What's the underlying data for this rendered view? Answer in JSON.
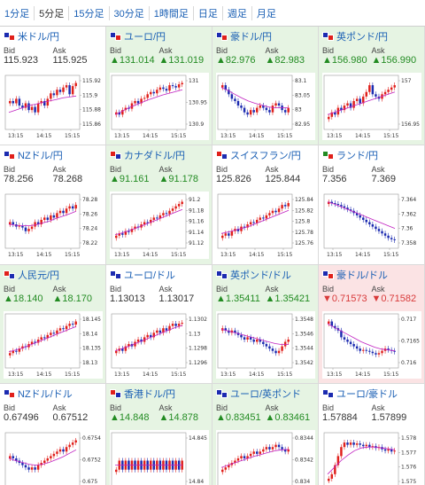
{
  "tabs": [
    {
      "label": "1分足",
      "active": false
    },
    {
      "label": "5分足",
      "active": true
    },
    {
      "label": "15分足",
      "active": false
    },
    {
      "label": "30分足",
      "active": false
    },
    {
      "label": "1時間足",
      "active": false
    },
    {
      "label": "日足",
      "active": false
    },
    {
      "label": "週足",
      "active": false
    },
    {
      "label": "月足",
      "active": false
    }
  ],
  "labels": {
    "bid": "Bid",
    "ask": "Ask"
  },
  "colors": {
    "up": "#228b22",
    "down": "#d83a3a",
    "up_bg": "#e6f4e3",
    "down_bg": "#fbe3e4",
    "bull_candle": "#e0201b",
    "bear_candle": "#1c2bb0",
    "ma_line": "#c020c0"
  },
  "cells": [
    {
      "pair": "米ドル/円",
      "flag": [
        "#1c2bb0",
        "#e0201b"
      ],
      "state": "neutral",
      "bid": "115.923",
      "ask": "115.925",
      "chart_data": {
        "type": "candlestick",
        "yticks": [
          "115.92",
          "115.9",
          "115.88",
          "115.86"
        ],
        "xticks": [
          "13:15",
          "14:15",
          "15:15"
        ],
        "trend": [
          0.55,
          0.5,
          0.6,
          0.45,
          0.4,
          0.5,
          0.35,
          0.42,
          0.3,
          0.5,
          0.55,
          0.45,
          0.6,
          0.72,
          0.68,
          0.8,
          0.75,
          0.85,
          0.9,
          0.7,
          0.88,
          0.95
        ],
        "ma": [
          0.3,
          0.35,
          0.4,
          0.45,
          0.48,
          0.52,
          0.55,
          0.58,
          0.62,
          0.64,
          0.66
        ]
      }
    },
    {
      "pair": "ユーロ/円",
      "flag": [
        "#1c2bb0",
        "#e0201b"
      ],
      "state": "up",
      "bid": "▲131.014",
      "ask": "▲131.019",
      "chart_data": {
        "type": "candlestick",
        "yticks": [
          "131",
          "130.95",
          "130.9"
        ],
        "xticks": [
          "13:15",
          "14:15",
          "15:15"
        ],
        "trend": [
          0.3,
          0.25,
          0.35,
          0.4,
          0.38,
          0.5,
          0.55,
          0.5,
          0.6,
          0.62,
          0.7,
          0.75,
          0.72,
          0.8,
          0.85,
          0.82,
          0.78,
          0.9,
          0.88,
          0.85,
          0.92,
          0.95
        ],
        "ma": [
          0.25,
          0.32,
          0.4,
          0.46,
          0.52,
          0.58,
          0.63,
          0.68,
          0.72,
          0.76,
          0.8
        ]
      }
    },
    {
      "pair": "豪ドル/円",
      "flag": [
        "#1c2bb0",
        "#e0201b"
      ],
      "state": "up",
      "bid": "▲82.976",
      "ask": "▲82.983",
      "chart_data": {
        "type": "candlestick",
        "yticks": [
          "83.1",
          "83.05",
          "83",
          "82.95"
        ],
        "xticks": [
          "13:15",
          "14:15",
          "15:15"
        ],
        "trend": [
          0.9,
          0.8,
          0.7,
          0.6,
          0.55,
          0.45,
          0.4,
          0.3,
          0.25,
          0.35,
          0.3,
          0.4,
          0.45,
          0.4,
          0.35,
          0.3,
          0.45,
          0.5,
          0.45,
          0.35,
          0.3,
          0.4
        ],
        "ma": [
          0.85,
          0.78,
          0.7,
          0.62,
          0.55,
          0.5,
          0.46,
          0.42,
          0.4,
          0.4,
          0.4
        ]
      }
    },
    {
      "pair": "英ポンド/円",
      "flag": [
        "#1c2bb0",
        "#e0201b"
      ],
      "state": "up",
      "bid": "▲156.980",
      "ask": "▲156.990",
      "chart_data": {
        "type": "candlestick",
        "yticks": [
          "157",
          "156.95"
        ],
        "xticks": [
          "13:15",
          "14:15",
          "15:15"
        ],
        "trend": [
          0.2,
          0.3,
          0.25,
          0.4,
          0.35,
          0.45,
          0.5,
          0.4,
          0.55,
          0.6,
          0.5,
          0.65,
          0.75,
          0.9,
          0.7,
          0.65,
          0.6,
          0.7,
          0.75,
          0.8,
          0.85,
          0.9
        ],
        "ma": [
          0.25,
          0.3,
          0.35,
          0.4,
          0.45,
          0.5,
          0.55,
          0.6,
          0.65,
          0.7,
          0.75
        ]
      }
    },
    {
      "pair": "NZドル/円",
      "flag": [
        "#1c2bb0",
        "#e0201b"
      ],
      "state": "neutral",
      "bid": "78.256",
      "ask": "78.268",
      "chart_data": {
        "type": "candlestick",
        "yticks": [
          "78.28",
          "78.26",
          "78.24",
          "78.22"
        ],
        "xticks": [
          "13:15",
          "14:15",
          "15:15"
        ],
        "trend": [
          0.5,
          0.45,
          0.4,
          0.42,
          0.38,
          0.3,
          0.35,
          0.4,
          0.5,
          0.45,
          0.55,
          0.6,
          0.55,
          0.65,
          0.6,
          0.7,
          0.75,
          0.7,
          0.8,
          0.85,
          0.8,
          0.88
        ],
        "ma": [
          0.45,
          0.43,
          0.42,
          0.42,
          0.44,
          0.48,
          0.52,
          0.58,
          0.63,
          0.68,
          0.74
        ]
      }
    },
    {
      "pair": "カナダドル/円",
      "flag": [
        "#e0201b",
        "#1c2bb0"
      ],
      "state": "up",
      "bid": "▲91.161",
      "ask": "▲91.178",
      "chart_data": {
        "type": "candlestick",
        "yticks": [
          "91.2",
          "91.18",
          "91.16",
          "91.14",
          "91.12"
        ],
        "xticks": [
          "13:15",
          "14:15",
          "15:15"
        ],
        "trend": [
          0.2,
          0.25,
          0.22,
          0.3,
          0.28,
          0.35,
          0.4,
          0.38,
          0.45,
          0.5,
          0.48,
          0.55,
          0.6,
          0.58,
          0.65,
          0.7,
          0.68,
          0.75,
          0.8,
          0.85,
          0.9,
          0.95
        ],
        "ma": [
          0.22,
          0.26,
          0.31,
          0.36,
          0.42,
          0.48,
          0.54,
          0.6,
          0.66,
          0.72,
          0.78
        ]
      }
    },
    {
      "pair": "スイスフラン/円",
      "flag": [
        "#e0201b",
        "#1c2bb0"
      ],
      "state": "neutral",
      "bid": "125.826",
      "ask": "125.844",
      "chart_data": {
        "type": "candlestick",
        "yticks": [
          "125.84",
          "125.82",
          "125.8",
          "125.78",
          "125.76"
        ],
        "xticks": [
          "13:15",
          "14:15",
          "15:15"
        ],
        "trend": [
          0.2,
          0.25,
          0.2,
          0.3,
          0.35,
          0.3,
          0.4,
          0.38,
          0.45,
          0.5,
          0.48,
          0.55,
          0.6,
          0.58,
          0.65,
          0.7,
          0.75,
          0.72,
          0.8,
          0.88,
          0.85,
          0.92
        ],
        "ma": [
          0.25,
          0.28,
          0.32,
          0.36,
          0.4,
          0.46,
          0.52,
          0.58,
          0.64,
          0.7,
          0.76
        ]
      }
    },
    {
      "pair": "ランド/円",
      "flag": [
        "#228b22",
        "#e0201b"
      ],
      "state": "neutral",
      "bid": "7.356",
      "ask": "7.369",
      "chart_data": {
        "type": "candlestick",
        "yticks": [
          "7.364",
          "7.362",
          "7.36",
          "7.358"
        ],
        "xticks": [
          "13:15",
          "14:15",
          "15:15"
        ],
        "trend": [
          0.95,
          0.92,
          0.9,
          0.88,
          0.85,
          0.82,
          0.78,
          0.75,
          0.7,
          0.65,
          0.6,
          0.55,
          0.5,
          0.45,
          0.4,
          0.35,
          0.3,
          0.25,
          0.2,
          0.15,
          0.12,
          0.1
        ],
        "ma": [
          0.95,
          0.9,
          0.84,
          0.78,
          0.72,
          0.66,
          0.6,
          0.54,
          0.48,
          0.42,
          0.36
        ]
      }
    },
    {
      "pair": "人民元/円",
      "flag": [
        "#e0201b",
        "#1c2bb0"
      ],
      "state": "up",
      "bid": "▲18.140",
      "ask": "▲18.170",
      "chart_data": {
        "type": "candlestick",
        "yticks": [
          "18.145",
          "18.14",
          "18.135",
          "18.13"
        ],
        "xticks": [
          "13:15",
          "14:15",
          "15:15"
        ],
        "trend": [
          0.25,
          0.3,
          0.28,
          0.35,
          0.4,
          0.38,
          0.45,
          0.5,
          0.48,
          0.55,
          0.6,
          0.58,
          0.65,
          0.7,
          0.68,
          0.75,
          0.8,
          0.78,
          0.85,
          0.9,
          0.88,
          0.95
        ],
        "ma": [
          0.28,
          0.32,
          0.36,
          0.42,
          0.48,
          0.54,
          0.6,
          0.66,
          0.72,
          0.78,
          0.84
        ]
      }
    },
    {
      "pair": "ユーロ/ドル",
      "flag": [
        "#1c2bb0",
        "#1c2bb0"
      ],
      "state": "neutral",
      "bid": "1.13013",
      "ask": "1.13017",
      "chart_data": {
        "type": "candlestick",
        "yticks": [
          "1.1302",
          "1.13",
          "1.1298",
          "1.1296"
        ],
        "xticks": [
          "13:15",
          "14:15",
          "15:15"
        ],
        "trend": [
          0.3,
          0.35,
          0.3,
          0.4,
          0.45,
          0.4,
          0.5,
          0.55,
          0.5,
          0.6,
          0.65,
          0.6,
          0.7,
          0.75,
          0.7,
          0.8,
          0.75,
          0.85,
          0.9,
          0.85,
          0.9,
          0.92
        ],
        "ma": [
          0.3,
          0.35,
          0.4,
          0.46,
          0.52,
          0.58,
          0.64,
          0.7,
          0.76,
          0.82,
          0.86
        ]
      }
    },
    {
      "pair": "英ポンド/ドル",
      "flag": [
        "#1c2bb0",
        "#1c2bb0"
      ],
      "state": "up",
      "bid": "▲1.35411",
      "ask": "▲1.35421",
      "chart_data": {
        "type": "candlestick",
        "yticks": [
          "1.3548",
          "1.3546",
          "1.3544",
          "1.3542"
        ],
        "xticks": [
          "13:15",
          "14:15",
          "15:15"
        ],
        "trend": [
          0.8,
          0.75,
          0.7,
          0.75,
          0.7,
          0.65,
          0.6,
          0.55,
          0.6,
          0.55,
          0.5,
          0.55,
          0.5,
          0.45,
          0.4,
          0.35,
          0.3,
          0.25,
          0.3,
          0.4,
          0.5,
          0.55
        ],
        "ma": [
          0.78,
          0.74,
          0.7,
          0.66,
          0.62,
          0.58,
          0.54,
          0.5,
          0.46,
          0.44,
          0.44
        ]
      }
    },
    {
      "pair": "豪ドル/ドル",
      "flag": [
        "#1c2bb0",
        "#e0201b"
      ],
      "state": "down",
      "bid": "▼0.71573",
      "ask": "▼0.71582",
      "chart_data": {
        "type": "candlestick",
        "yticks": [
          "0.717",
          "0.7165",
          "0.716"
        ],
        "xticks": [
          "13:15",
          "14:15",
          "15:15"
        ],
        "trend": [
          0.95,
          0.85,
          0.8,
          0.75,
          0.6,
          0.55,
          0.5,
          0.45,
          0.4,
          0.35,
          0.3,
          0.32,
          0.3,
          0.28,
          0.25,
          0.22,
          0.25,
          0.3,
          0.35,
          0.32,
          0.3,
          0.28
        ],
        "ma": [
          0.9,
          0.82,
          0.74,
          0.66,
          0.58,
          0.5,
          0.44,
          0.38,
          0.34,
          0.32,
          0.3
        ]
      }
    },
    {
      "pair": "NZドル/ドル",
      "flag": [
        "#1c2bb0",
        "#e0201b"
      ],
      "state": "neutral",
      "bid": "0.67496",
      "ask": "0.67512",
      "chart_data": {
        "type": "candlestick",
        "yticks": [
          "0.6754",
          "0.6752",
          "0.675"
        ],
        "xticks": [
          "13:15",
          "14:15",
          "15:15"
        ],
        "trend": [
          0.6,
          0.55,
          0.5,
          0.45,
          0.4,
          0.35,
          0.3,
          0.35,
          0.3,
          0.4,
          0.45,
          0.5,
          0.55,
          0.6,
          0.65,
          0.7,
          0.75,
          0.7,
          0.8,
          0.85,
          0.9,
          0.95
        ],
        "ma": [
          0.55,
          0.5,
          0.46,
          0.42,
          0.4,
          0.42,
          0.46,
          0.52,
          0.58,
          0.66,
          0.74
        ]
      }
    },
    {
      "pair": "香港ドル/円",
      "flag": [
        "#e0201b",
        "#1c2bb0"
      ],
      "state": "up",
      "bid": "▲14.848",
      "ask": "▲14.878",
      "chart_data": {
        "type": "candlestick",
        "yticks": [
          "14.845",
          "14.84"
        ],
        "xticks": [
          "13:15",
          "14:15",
          "15:15"
        ],
        "trend": [
          0.3,
          0.5,
          0.3,
          0.5,
          0.3,
          0.5,
          0.3,
          0.5,
          0.3,
          0.5,
          0.3,
          0.5,
          0.3,
          0.5,
          0.3,
          0.5,
          0.3,
          0.5,
          0.3,
          0.5,
          0.3,
          0.5
        ],
        "ma": [
          0.4,
          0.4,
          0.4,
          0.4,
          0.4,
          0.4,
          0.4,
          0.4,
          0.4,
          0.4,
          0.4
        ]
      }
    },
    {
      "pair": "ユーロ/英ポンド",
      "flag": [
        "#1c2bb0",
        "#1c2bb0"
      ],
      "state": "up",
      "bid": "▲0.83451",
      "ask": "▲0.83461",
      "chart_data": {
        "type": "candlestick",
        "yticks": [
          "0.8344",
          "0.8342",
          "0.834"
        ],
        "xticks": [
          "13:15",
          "14:15",
          "15:15"
        ],
        "trend": [
          0.3,
          0.35,
          0.4,
          0.45,
          0.5,
          0.55,
          0.6,
          0.55,
          0.6,
          0.65,
          0.7,
          0.65,
          0.7,
          0.75,
          0.8,
          0.75,
          0.8,
          0.85,
          0.8,
          0.75,
          0.7,
          0.75
        ],
        "ma": [
          0.35,
          0.4,
          0.45,
          0.5,
          0.55,
          0.6,
          0.64,
          0.68,
          0.72,
          0.74,
          0.75
        ]
      }
    },
    {
      "pair": "ユーロ/豪ドル",
      "flag": [
        "#1c2bb0",
        "#1c2bb0"
      ],
      "state": "neutral",
      "bid": "1.57884",
      "ask": "1.57899",
      "chart_data": {
        "type": "candlestick",
        "yticks": [
          "1.578",
          "1.577",
          "1.576",
          "1.575"
        ],
        "xticks": [
          "13:15",
          "14:15",
          "15:15"
        ],
        "trend": [
          0.1,
          0.2,
          0.4,
          0.6,
          0.8,
          0.9,
          0.85,
          0.9,
          0.85,
          0.88,
          0.85,
          0.82,
          0.85,
          0.8,
          0.82,
          0.78,
          0.8,
          0.75,
          0.72,
          0.75,
          0.7,
          0.72
        ],
        "ma": [
          0.2,
          0.35,
          0.5,
          0.62,
          0.72,
          0.78,
          0.8,
          0.8,
          0.78,
          0.76,
          0.74
        ]
      }
    }
  ]
}
